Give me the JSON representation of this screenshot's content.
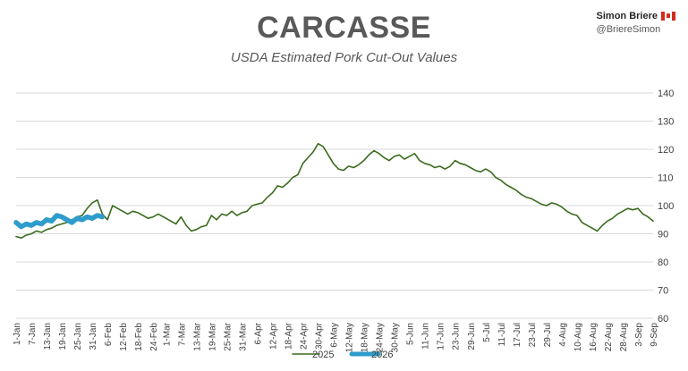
{
  "header": {
    "title": "CARCASSE",
    "subtitle": "USDA Estimated Pork Cut-Out Values",
    "author_name": "Simon Briere",
    "author_handle": "@BriereSimon"
  },
  "colors": {
    "series_2025": "#3a6b1e",
    "series_2026": "#2e9ccc",
    "gridline": "#d9d9d9",
    "flag_red": "#d52b1e"
  },
  "chart_data": {
    "type": "line",
    "title": "CARCASSE",
    "subtitle": "USDA Estimated Pork Cut-Out Values",
    "y_axis_position": "right",
    "ylim": [
      60,
      140
    ],
    "yticks": [
      60,
      70,
      80,
      90,
      100,
      110,
      120,
      130,
      140
    ],
    "grid": true,
    "xlim": [
      "1-Jan",
      "9-Sep"
    ],
    "x_tick_labels": [
      "1-Jan",
      "7-Jan",
      "13-Jan",
      "19-Jan",
      "25-Jan",
      "31-Jan",
      "6-Feb",
      "12-Feb",
      "18-Feb",
      "24-Feb",
      "1-Mar",
      "7-Mar",
      "13-Mar",
      "19-Mar",
      "25-Mar",
      "31-Mar",
      "6-Apr",
      "12-Apr",
      "18-Apr",
      "24-Apr",
      "30-Apr",
      "6-May",
      "12-May",
      "18-May",
      "24-May",
      "30-May",
      "5-Jun",
      "11-Jun",
      "17-Jun",
      "23-Jun",
      "29-Jun",
      "5-Jul",
      "11-Jul",
      "17-Jul",
      "23-Jul",
      "29-Jul",
      "4-Aug",
      "10-Aug",
      "16-Aug",
      "22-Aug",
      "28-Aug",
      "3-Sep",
      "9-Sep"
    ],
    "legend_placement": "bottom",
    "series": [
      {
        "name": "2025",
        "color": "#3a6b1e",
        "width": 1.6,
        "points": [
          [
            "1-Jan",
            89
          ],
          [
            "3-Jan",
            88.5
          ],
          [
            "5-Jan",
            89.5
          ],
          [
            "7-Jan",
            90
          ],
          [
            "9-Jan",
            91
          ],
          [
            "11-Jan",
            90.5
          ],
          [
            "13-Jan",
            91.5
          ],
          [
            "15-Jan",
            92
          ],
          [
            "17-Jan",
            93
          ],
          [
            "19-Jan",
            93.5
          ],
          [
            "21-Jan",
            94
          ],
          [
            "23-Jan",
            95
          ],
          [
            "25-Jan",
            96
          ],
          [
            "27-Jan",
            96.5
          ],
          [
            "29-Jan",
            99
          ],
          [
            "31-Jan",
            101
          ],
          [
            "2-Feb",
            102
          ],
          [
            "4-Feb",
            97
          ],
          [
            "6-Feb",
            95
          ],
          [
            "8-Feb",
            100
          ],
          [
            "10-Feb",
            99
          ],
          [
            "12-Feb",
            98
          ],
          [
            "14-Feb",
            97
          ],
          [
            "16-Feb",
            98
          ],
          [
            "18-Feb",
            97.5
          ],
          [
            "20-Feb",
            96.5
          ],
          [
            "22-Feb",
            95.5
          ],
          [
            "24-Feb",
            96
          ],
          [
            "26-Feb",
            97
          ],
          [
            "28-Feb",
            96
          ],
          [
            "1-Mar",
            95.5
          ],
          [
            "3-Mar",
            94.5
          ],
          [
            "5-Mar",
            93.5
          ],
          [
            "7-Mar",
            96
          ],
          [
            "9-Mar",
            93
          ],
          [
            "11-Mar",
            91
          ],
          [
            "13-Mar",
            91.5
          ],
          [
            "15-Mar",
            92.5
          ],
          [
            "17-Mar",
            93
          ],
          [
            "19-Mar",
            96.5
          ],
          [
            "21-Mar",
            95
          ],
          [
            "23-Mar",
            97
          ],
          [
            "25-Mar",
            96.5
          ],
          [
            "27-Mar",
            98
          ],
          [
            "29-Mar",
            96.5
          ],
          [
            "31-Mar",
            97.5
          ],
          [
            "2-Apr",
            98
          ],
          [
            "4-Apr",
            100
          ],
          [
            "6-Apr",
            100.5
          ],
          [
            "8-Apr",
            101
          ],
          [
            "10-Apr",
            103
          ],
          [
            "12-Apr",
            104.5
          ],
          [
            "14-Apr",
            107
          ],
          [
            "16-Apr",
            106.5
          ],
          [
            "18-Apr",
            108
          ],
          [
            "20-Apr",
            110
          ],
          [
            "22-Apr",
            111
          ],
          [
            "24-Apr",
            115
          ],
          [
            "26-Apr",
            117
          ],
          [
            "28-Apr",
            119
          ],
          [
            "30-Apr",
            122
          ],
          [
            "2-May",
            121
          ],
          [
            "4-May",
            118
          ],
          [
            "6-May",
            115
          ],
          [
            "8-May",
            113
          ],
          [
            "10-May",
            112.5
          ],
          [
            "12-May",
            114
          ],
          [
            "14-May",
            113.5
          ],
          [
            "16-May",
            114.5
          ],
          [
            "18-May",
            116
          ],
          [
            "20-May",
            118
          ],
          [
            "22-May",
            119.5
          ],
          [
            "24-May",
            118.5
          ],
          [
            "26-May",
            117
          ],
          [
            "28-May",
            116
          ],
          [
            "30-May",
            117.5
          ],
          [
            "1-Jun",
            118
          ],
          [
            "3-Jun",
            116.5
          ],
          [
            "5-Jun",
            117.5
          ],
          [
            "7-Jun",
            118.5
          ],
          [
            "9-Jun",
            116
          ],
          [
            "11-Jun",
            115
          ],
          [
            "13-Jun",
            114.5
          ],
          [
            "15-Jun",
            113.5
          ],
          [
            "17-Jun",
            114
          ],
          [
            "19-Jun",
            113
          ],
          [
            "21-Jun",
            114
          ],
          [
            "23-Jun",
            116
          ],
          [
            "25-Jun",
            115
          ],
          [
            "27-Jun",
            114.5
          ],
          [
            "29-Jun",
            113.5
          ],
          [
            "1-Jul",
            112.5
          ],
          [
            "3-Jul",
            112
          ],
          [
            "5-Jul",
            113
          ],
          [
            "7-Jul",
            112
          ],
          [
            "9-Jul",
            110
          ],
          [
            "11-Jul",
            109
          ],
          [
            "13-Jul",
            107.5
          ],
          [
            "15-Jul",
            106.5
          ],
          [
            "17-Jul",
            105.5
          ],
          [
            "19-Jul",
            104
          ],
          [
            "21-Jul",
            103
          ],
          [
            "23-Jul",
            102.5
          ],
          [
            "25-Jul",
            101.5
          ],
          [
            "27-Jul",
            100.5
          ],
          [
            "29-Jul",
            100
          ],
          [
            "31-Jul",
            101
          ],
          [
            "2-Aug",
            100.5
          ],
          [
            "4-Aug",
            99.5
          ],
          [
            "6-Aug",
            98
          ],
          [
            "8-Aug",
            97
          ],
          [
            "10-Aug",
            96.5
          ],
          [
            "12-Aug",
            94
          ],
          [
            "14-Aug",
            93
          ],
          [
            "16-Aug",
            92
          ],
          [
            "18-Aug",
            91
          ],
          [
            "20-Aug",
            93
          ],
          [
            "22-Aug",
            94.5
          ],
          [
            "24-Aug",
            95.5
          ],
          [
            "26-Aug",
            97
          ],
          [
            "28-Aug",
            98
          ],
          [
            "30-Aug",
            99
          ],
          [
            "1-Sep",
            98.5
          ],
          [
            "3-Sep",
            99
          ],
          [
            "5-Sep",
            97
          ],
          [
            "7-Sep",
            96
          ],
          [
            "9-Sep",
            94.5
          ]
        ]
      },
      {
        "name": "2026",
        "color": "#2e9ccc",
        "width": 5.5,
        "points": [
          [
            "1-Jan",
            94
          ],
          [
            "3-Jan",
            92.5
          ],
          [
            "5-Jan",
            93.5
          ],
          [
            "7-Jan",
            93
          ],
          [
            "9-Jan",
            94
          ],
          [
            "11-Jan",
            93.5
          ],
          [
            "13-Jan",
            95
          ],
          [
            "15-Jan",
            94.5
          ],
          [
            "17-Jan",
            96.5
          ],
          [
            "19-Jan",
            96
          ],
          [
            "21-Jan",
            95
          ],
          [
            "23-Jan",
            94
          ],
          [
            "25-Jan",
            95.5
          ],
          [
            "27-Jan",
            95
          ],
          [
            "29-Jan",
            96
          ],
          [
            "31-Jan",
            95.5
          ],
          [
            "2-Feb",
            96.5
          ],
          [
            "4-Feb",
            96
          ]
        ]
      }
    ]
  }
}
